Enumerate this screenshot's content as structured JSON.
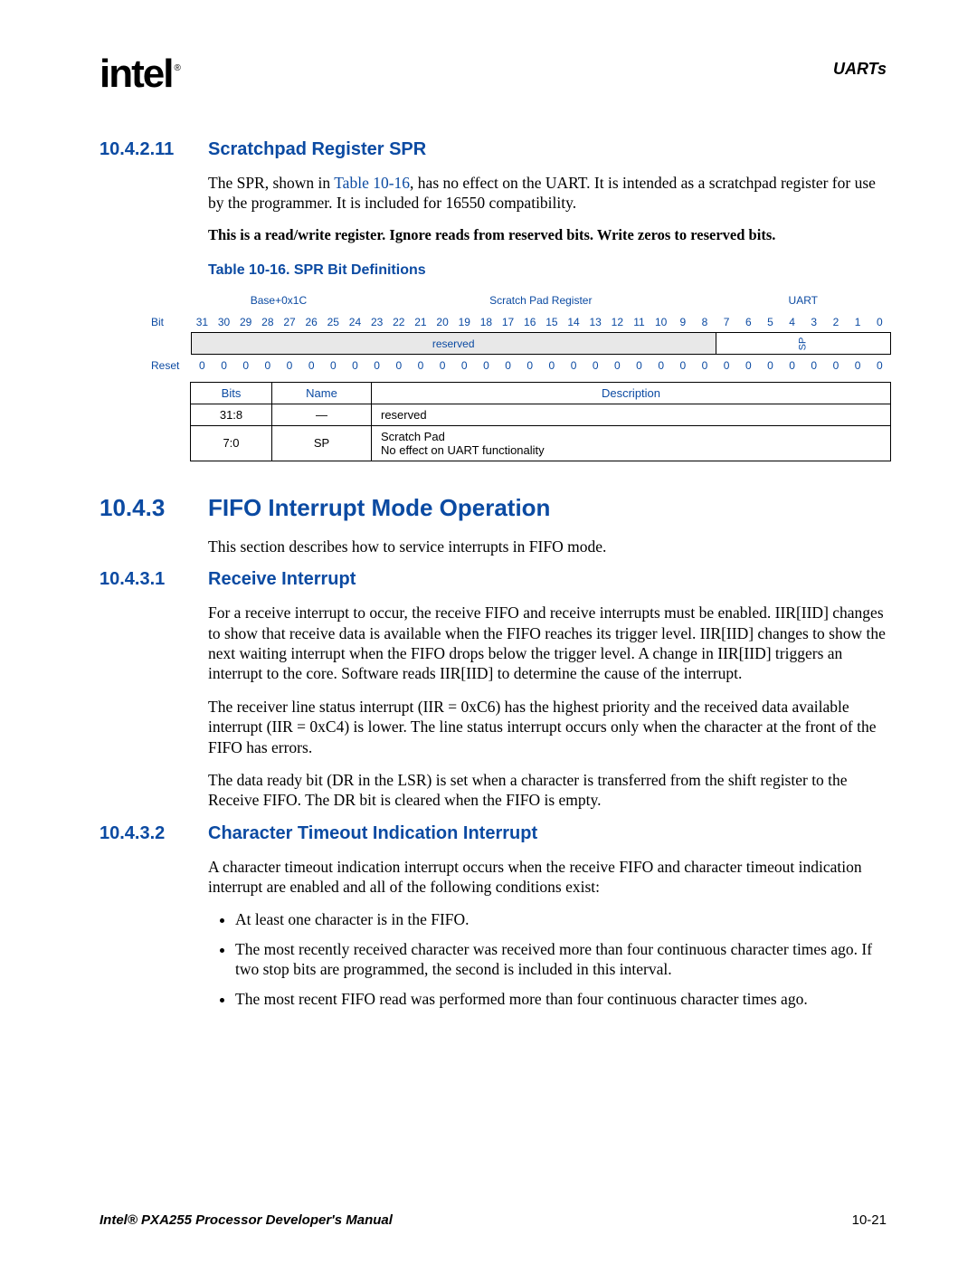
{
  "header": {
    "logo_text": "intel",
    "registered": "®",
    "chapter": "UARTs"
  },
  "sec_10_4_2_11": {
    "number": "10.4.2.11",
    "title": "Scratchpad Register SPR",
    "para1_a": "The SPR, shown in ",
    "para1_link": "Table 10-16",
    "para1_b": ", has no effect on the UART. It is intended as a scratchpad register for use by the programmer. It is included for 16550 compatibility.",
    "bold_note": "This is a read/write register. Ignore reads from reserved bits. Write zeros to reserved bits.",
    "table_caption": "Table 10-16. SPR Bit Definitions"
  },
  "bit_table": {
    "header_left": "Base+0x1C",
    "header_mid": "Scratch Pad Register",
    "header_right": "UART",
    "row_label_bit": "Bit",
    "row_label_reset": "Reset",
    "bits": [
      "31",
      "30",
      "29",
      "28",
      "27",
      "26",
      "25",
      "24",
      "23",
      "22",
      "21",
      "20",
      "19",
      "18",
      "17",
      "16",
      "15",
      "14",
      "13",
      "12",
      "11",
      "10",
      "9",
      "8",
      "7",
      "6",
      "5",
      "4",
      "3",
      "2",
      "1",
      "0"
    ],
    "reserved_label": "reserved",
    "sp_label": "SP",
    "reset_values": [
      "0",
      "0",
      "0",
      "0",
      "0",
      "0",
      "0",
      "0",
      "0",
      "0",
      "0",
      "0",
      "0",
      "0",
      "0",
      "0",
      "0",
      "0",
      "0",
      "0",
      "0",
      "0",
      "0",
      "0",
      "0",
      "0",
      "0",
      "0",
      "0",
      "0",
      "0",
      "0"
    ]
  },
  "desc_table": {
    "headers": {
      "bits": "Bits",
      "name": "Name",
      "description": "Description"
    },
    "rows": [
      {
        "bits": "31:8",
        "name": "—",
        "description": "reserved"
      },
      {
        "bits": "7:0",
        "name": "SP",
        "description": "Scratch Pad\nNo effect on UART functionality"
      }
    ]
  },
  "sec_10_4_3": {
    "number": "10.4.3",
    "title": "FIFO Interrupt Mode Operation",
    "intro": "This section describes how to service interrupts in FIFO mode."
  },
  "sec_10_4_3_1": {
    "number": "10.4.3.1",
    "title": "Receive Interrupt",
    "p1": "For a receive interrupt to occur, the receive FIFO and receive interrupts must be enabled. IIR[IID] changes to show that receive data is available when the FIFO reaches its trigger level. IIR[IID] changes to show the next waiting interrupt when the FIFO drops below the trigger level. A change in IIR[IID] triggers an interrupt to the core. Software reads IIR[IID] to determine the cause of the interrupt.",
    "p2": "The receiver line status interrupt (IIR = 0xC6) has the highest priority and the received data available interrupt (IIR = 0xC4) is lower. The line status interrupt occurs only when the character at the front of the FIFO has errors.",
    "p3": "The data ready bit (DR in the LSR) is set when a character is transferred from the shift register to the Receive FIFO. The DR bit is cleared when the FIFO is empty."
  },
  "sec_10_4_3_2": {
    "number": "10.4.3.2",
    "title": "Character Timeout Indication Interrupt",
    "p1": "A character timeout indication interrupt occurs when the receive FIFO and character timeout indication interrupt are enabled and all of the following conditions exist:",
    "bullets": [
      "At least one character is in the FIFO.",
      "The most recently received character was received more than four continuous character times ago. If two stop bits are programmed, the second is included in this interval.",
      "The most recent FIFO read was performed more than four continuous character times ago."
    ]
  },
  "footer": {
    "title": "Intel® PXA255 Processor Developer's Manual",
    "page": "10-21"
  }
}
